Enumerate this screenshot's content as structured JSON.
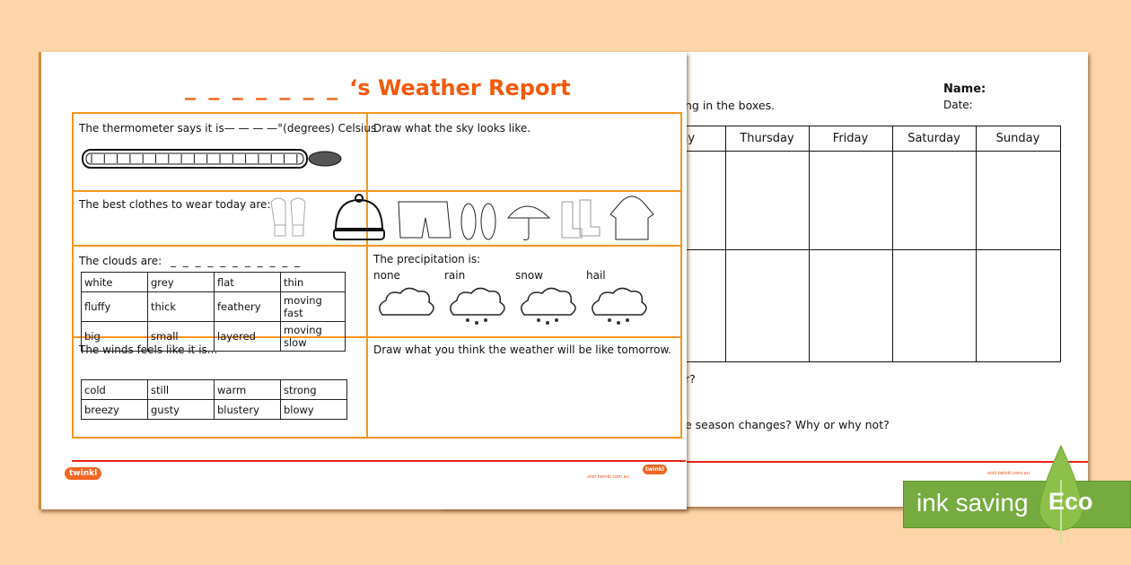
{
  "front": {
    "title_blank": "_ _ _ _ _ _ _",
    "title": "‘s Weather Report",
    "thermometer_prompt": "The thermometer says it is",
    "thermometer_blank": "— — — —",
    "thermometer_unit": "°(degrees) Celsius",
    "sky_prompt": "Draw what the sky looks like.",
    "clothes_prompt": "The best clothes to wear today are:",
    "clothes_icons": [
      "mittens-icon",
      "beanie-icon",
      "shorts-icon",
      "flip-flops-icon",
      "umbrella-icon",
      "boots-icon",
      "raincoat-icon"
    ],
    "clouds_prompt": "The clouds are:",
    "clouds_blank": "_ _ _ _ _ _ _ _ _ _ _",
    "cloud_words": [
      [
        "white",
        "grey",
        "flat",
        "thin"
      ],
      [
        "fluffy",
        "thick",
        "feathery",
        "moving fast"
      ],
      [
        "big",
        "small",
        "layered",
        "moving slow"
      ]
    ],
    "precip_prompt": "The precipitation is:",
    "precip_types": [
      "none",
      "rain",
      "snow",
      "hail"
    ],
    "wind_prompt": "The winds feels like it is...",
    "wind_words": [
      [
        "cold",
        "still",
        "warm",
        "strong"
      ],
      [
        "breezy",
        "gusty",
        "blustery",
        "blowy"
      ]
    ],
    "tomorrow_prompt": "Draw what you think the weather will be like tomorrow.",
    "footer_url": "visit twinkl.com.au",
    "logo": "twinkl"
  },
  "back": {
    "instruction": "ng in the boxes.",
    "name_label": "Name:",
    "date_label": "Date:",
    "days": [
      "sday",
      "Thursday",
      "Friday",
      "Saturday",
      "Sunday"
    ],
    "question1": "r?",
    "question2": "e season changes? Why or why not?",
    "footer_url": "visit twinkl.com.au"
  },
  "badge": {
    "text": "ink saving",
    "eco": "Eco",
    "color": "#76ab3f"
  },
  "colors": {
    "accent": "#f15a0a",
    "grid": "#f7941d",
    "background": "#fdd5a8"
  }
}
